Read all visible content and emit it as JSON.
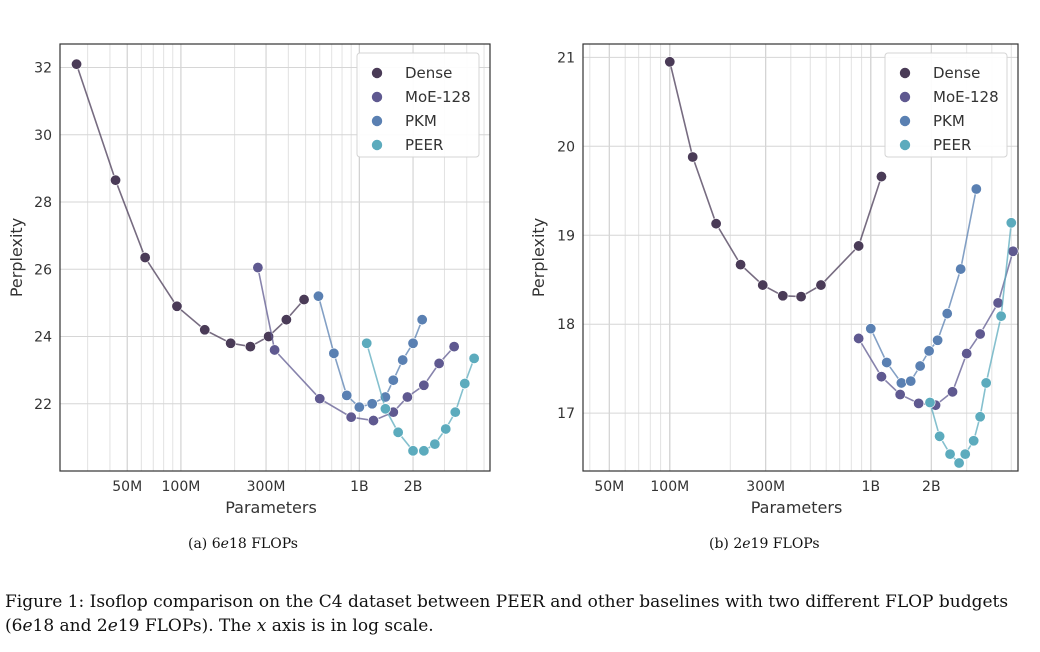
{
  "chart_data": [
    {
      "type": "scatter",
      "panel": "a",
      "xscale": "log",
      "xlabel": "Parameters",
      "ylabel": "Perplexity",
      "xlim": [
        21000000,
        5400000000
      ],
      "ylim": [
        20.0,
        32.7
      ],
      "xticks": [
        {
          "value": 50000000,
          "label": "50M"
        },
        {
          "value": 100000000,
          "label": "100M"
        },
        {
          "value": 300000000,
          "label": "300M"
        },
        {
          "value": 1000000000,
          "label": "1B"
        },
        {
          "value": 2000000000,
          "label": "2B"
        }
      ],
      "yticks": [
        {
          "value": 22,
          "label": "22"
        },
        {
          "value": 24,
          "label": "24"
        },
        {
          "value": 26,
          "label": "26"
        },
        {
          "value": 28,
          "label": "28"
        },
        {
          "value": 30,
          "label": "30"
        },
        {
          "value": 32,
          "label": "32"
        }
      ],
      "legend": "top-right",
      "grid": true,
      "series": [
        {
          "name": "Dense",
          "color": "#4a3b57",
          "points": [
            [
              26000000,
              32.1
            ],
            [
              43000000,
              28.65
            ],
            [
              63000000,
              26.35
            ],
            [
              95000000,
              24.9
            ],
            [
              136000000,
              24.2
            ],
            [
              190000000,
              23.8
            ],
            [
              245000000,
              23.7
            ],
            [
              310000000,
              24.0
            ],
            [
              390000000,
              24.5
            ],
            [
              490000000,
              25.1
            ]
          ]
        },
        {
          "name": "MoE-128",
          "color": "#5f5990",
          "points": [
            [
              270000000,
              26.05
            ],
            [
              335000000,
              23.6
            ],
            [
              600000000,
              22.15
            ],
            [
              900000000,
              21.6
            ],
            [
              1200000000,
              21.5
            ],
            [
              1550000000,
              21.75
            ],
            [
              1860000000,
              22.2
            ],
            [
              2300000000,
              22.55
            ],
            [
              2800000000,
              23.2
            ],
            [
              3400000000,
              23.7
            ]
          ]
        },
        {
          "name": "PKM",
          "color": "#5a80b2",
          "points": [
            [
              590000000,
              25.2
            ],
            [
              720000000,
              23.5
            ],
            [
              850000000,
              22.25
            ],
            [
              1000000000,
              21.9
            ],
            [
              1180000000,
              22.0
            ],
            [
              1400000000,
              22.2
            ],
            [
              1550000000,
              22.7
            ],
            [
              1750000000,
              23.3
            ],
            [
              2000000000,
              23.8
            ],
            [
              2250000000,
              24.5
            ]
          ]
        },
        {
          "name": "PEER",
          "color": "#5cabbd",
          "points": [
            [
              1100000000,
              23.8
            ],
            [
              1400000000,
              21.85
            ],
            [
              1650000000,
              21.15
            ],
            [
              2000000000,
              20.6
            ],
            [
              2300000000,
              20.6
            ],
            [
              2650000000,
              20.8
            ],
            [
              3050000000,
              21.25
            ],
            [
              3450000000,
              21.75
            ],
            [
              3900000000,
              22.6
            ],
            [
              4400000000,
              23.35
            ]
          ]
        }
      ]
    },
    {
      "type": "scatter",
      "panel": "b",
      "xscale": "log",
      "xlabel": "Parameters",
      "ylabel": "Perplexity",
      "xlim": [
        37000000,
        5400000000
      ],
      "ylim": [
        16.35,
        21.15
      ],
      "xticks": [
        {
          "value": 50000000,
          "label": "50M"
        },
        {
          "value": 100000000,
          "label": "100M"
        },
        {
          "value": 300000000,
          "label": "300M"
        },
        {
          "value": 1000000000,
          "label": "1B"
        },
        {
          "value": 2000000000,
          "label": "2B"
        }
      ],
      "yticks": [
        {
          "value": 17,
          "label": "17"
        },
        {
          "value": 18,
          "label": "18"
        },
        {
          "value": 19,
          "label": "19"
        },
        {
          "value": 20,
          "label": "20"
        },
        {
          "value": 21,
          "label": "21"
        }
      ],
      "legend": "top-right",
      "grid": true,
      "series": [
        {
          "name": "Dense",
          "color": "#4a3b57",
          "points": [
            [
              100000000,
              20.95
            ],
            [
              130000000,
              19.88
            ],
            [
              170000000,
              19.13
            ],
            [
              225000000,
              18.67
            ],
            [
              290000000,
              18.44
            ],
            [
              365000000,
              18.32
            ],
            [
              450000000,
              18.31
            ],
            [
              565000000,
              18.44
            ],
            [
              870000000,
              18.88
            ],
            [
              1130000000,
              19.66
            ]
          ]
        },
        {
          "name": "MoE-128",
          "color": "#5f5990",
          "points": [
            [
              870000000,
              17.84
            ],
            [
              1130000000,
              17.41
            ],
            [
              1400000000,
              17.21
            ],
            [
              1730000000,
              17.11
            ],
            [
              2100000000,
              17.09
            ],
            [
              2550000000,
              17.24
            ],
            [
              3000000000,
              17.67
            ],
            [
              3500000000,
              17.89
            ],
            [
              4300000000,
              18.24
            ],
            [
              5100000000,
              18.82
            ]
          ]
        },
        {
          "name": "PKM",
          "color": "#5a80b2",
          "points": [
            [
              1000000000,
              17.95
            ],
            [
              1200000000,
              17.57
            ],
            [
              1420000000,
              17.34
            ],
            [
              1580000000,
              17.36
            ],
            [
              1760000000,
              17.53
            ],
            [
              1950000000,
              17.7
            ],
            [
              2150000000,
              17.82
            ],
            [
              2400000000,
              18.12
            ],
            [
              2800000000,
              18.62
            ],
            [
              3350000000,
              19.52
            ]
          ]
        },
        {
          "name": "PEER",
          "color": "#5cabbd",
          "points": [
            [
              1970000000,
              17.12
            ],
            [
              2200000000,
              16.74
            ],
            [
              2480000000,
              16.54
            ],
            [
              2750000000,
              16.44
            ],
            [
              2950000000,
              16.54
            ],
            [
              3250000000,
              16.69
            ],
            [
              3500000000,
              16.96
            ],
            [
              3750000000,
              17.34
            ],
            [
              4450000000,
              18.09
            ],
            [
              5000000000,
              19.14
            ]
          ]
        }
      ]
    }
  ],
  "captions": {
    "a": {
      "prefix": "(a) 6",
      "italic": "e",
      "suffix": "18 FLOPs"
    },
    "b": {
      "prefix": "(b) 2",
      "italic": "e",
      "suffix": "19 FLOPs"
    },
    "figure": {
      "part1": "Figure 1: Isoflop comparison on the C4 dataset between PEER and other baselines with two different FLOP budgets (6",
      "e1": "e",
      "part2": "18 and 2",
      "e2": "e",
      "part3": "19 FLOPs). The ",
      "x": "x",
      "part4": " axis is in log scale."
    }
  }
}
